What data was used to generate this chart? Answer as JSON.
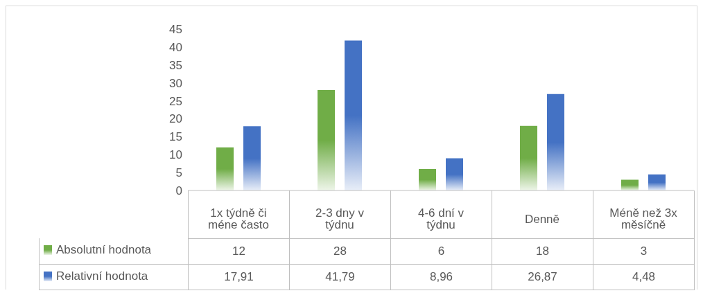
{
  "chart_data": {
    "type": "bar",
    "categories": [
      "1x týdně či méne často",
      "2-3 dny v týdnu",
      "4-6 dní v týdnu",
      "Denně",
      "Méně než 3x měsíčně"
    ],
    "series": [
      {
        "name": "Absolutní hodnota",
        "color": "#70ad47",
        "values": [
          12,
          28,
          6,
          18,
          3
        ],
        "value_labels": [
          "12",
          "28",
          "6",
          "18",
          "3"
        ]
      },
      {
        "name": "Relativní hodnota",
        "color": "#4472c4",
        "values": [
          17.91,
          41.79,
          8.96,
          26.87,
          4.48
        ],
        "value_labels": [
          "17,91",
          "41,79",
          "8,96",
          "26,87",
          "4,48"
        ]
      }
    ],
    "ylim": [
      0,
      45
    ],
    "yticks": [
      0,
      5,
      10,
      15,
      20,
      25,
      30,
      35,
      40,
      45
    ],
    "legend": "bottom"
  }
}
